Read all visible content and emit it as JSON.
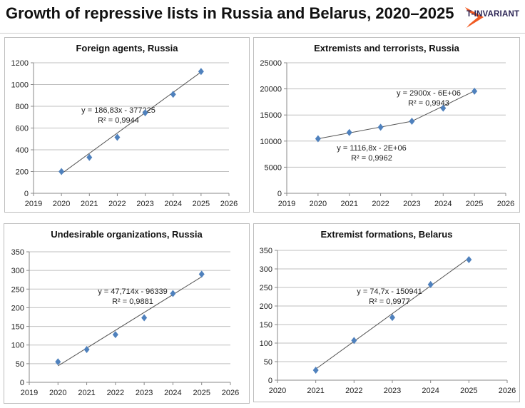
{
  "header": {
    "title": "Growth of repressive lists in Russia and Belarus, 2020–2025",
    "logo_text": "T-INVARIANT"
  },
  "colors": {
    "marker": "#4f81bd",
    "trend": "#555555",
    "grid": "#bfbfbf",
    "logo_orange": "#f05a22",
    "logo_text": "#2b2454"
  },
  "chart_data": [
    {
      "type": "scatter",
      "title": "Foreign agents, Russia",
      "x": [
        2020,
        2021,
        2022,
        2023,
        2024,
        2025
      ],
      "y": [
        200,
        330,
        515,
        740,
        910,
        1120
      ],
      "xlim": [
        2019,
        2026
      ],
      "ylim": [
        0,
        1200
      ],
      "xticks": [
        "2019",
        "2020",
        "2021",
        "2022",
        "2023",
        "2024",
        "2025",
        "2026"
      ],
      "yticks": [
        "0",
        "200",
        "400",
        "600",
        "800",
        "1000",
        "1200"
      ],
      "trendlines": [
        {
          "x": [
            2020,
            2025
          ],
          "y": [
            180,
            1115
          ],
          "equation": "y = 186,83x - 377225",
          "r2": "R² = 0,9944"
        }
      ],
      "grid": true
    },
    {
      "type": "scatter",
      "title": "Extremists and terrorists, Russia",
      "x": [
        2020,
        2021,
        2022,
        2023,
        2024,
        2025
      ],
      "y": [
        10450,
        11650,
        12650,
        13800,
        16300,
        19550
      ],
      "xlim": [
        2019,
        2026
      ],
      "ylim": [
        0,
        25000
      ],
      "xticks": [
        "2019",
        "2020",
        "2021",
        "2022",
        "2023",
        "2024",
        "2025",
        "2026"
      ],
      "yticks": [
        "0",
        "5000",
        "10000",
        "15000",
        "20000",
        "25000"
      ],
      "trendlines": [
        {
          "x": [
            2023,
            2025
          ],
          "y": [
            13800,
            19600
          ],
          "equation": "y = 2900x - 6E+06",
          "r2": "R² = 0,9943"
        },
        {
          "x": [
            2020,
            2023
          ],
          "y": [
            10450,
            13800
          ],
          "equation": "y = 1116,8x - 2E+06",
          "r2": "R² = 0,9962"
        }
      ],
      "grid": true
    },
    {
      "type": "scatter",
      "title": "Undesirable organizations, Russia",
      "x": [
        2020,
        2021,
        2022,
        2023,
        2024,
        2025
      ],
      "y": [
        55,
        88,
        128,
        173,
        238,
        290
      ],
      "xlim": [
        2019,
        2026
      ],
      "ylim": [
        0,
        350
      ],
      "xticks": [
        "2019",
        "2020",
        "2021",
        "2022",
        "2023",
        "2024",
        "2025",
        "2026"
      ],
      "yticks": [
        "0",
        "50",
        "100",
        "150",
        "200",
        "250",
        "300",
        "350"
      ],
      "trendlines": [
        {
          "x": [
            2020,
            2025
          ],
          "y": [
            44,
            283
          ],
          "equation": "y = 47,714x - 96339",
          "r2": "R² = 0,9881"
        }
      ],
      "grid": true
    },
    {
      "type": "scatter",
      "title": "Extremist formations, Belarus",
      "x": [
        2021,
        2022,
        2023,
        2024,
        2025
      ],
      "y": [
        27,
        107,
        169,
        258,
        325
      ],
      "xlim": [
        2020,
        2026
      ],
      "ylim": [
        0,
        350
      ],
      "xticks": [
        "2020",
        "2021",
        "2022",
        "2023",
        "2024",
        "2025",
        "2026"
      ],
      "yticks": [
        "0",
        "50",
        "100",
        "150",
        "200",
        "250",
        "300",
        "350"
      ],
      "trendlines": [
        {
          "x": [
            2021,
            2025
          ],
          "y": [
            30,
            329
          ],
          "equation": "y = 74,7x - 150941",
          "r2": "R² = 0,9977"
        }
      ],
      "grid": true
    }
  ]
}
